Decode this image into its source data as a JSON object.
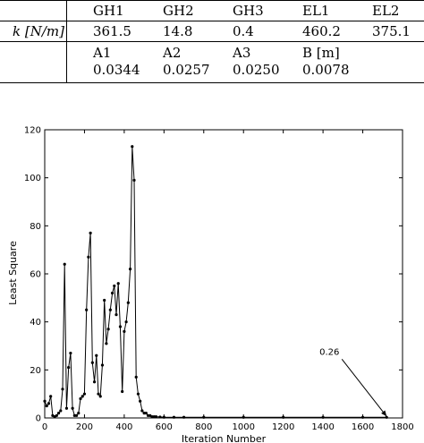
{
  "table": {
    "header": [
      "GH1",
      "GH2",
      "GH3",
      "EL1",
      "EL2"
    ],
    "row_label": "k [N/m]",
    "row_values": [
      "361.5",
      "14.8",
      "0.4",
      "460.2",
      "375.1"
    ],
    "sub_header": [
      "A1",
      "A2",
      "A3",
      "B  [m]"
    ],
    "sub_values": [
      "0.0344",
      "0.0257",
      "0.0250",
      "0.0078"
    ]
  },
  "chart_data": {
    "type": "line",
    "title": "",
    "xlabel": "Iteration Number",
    "ylabel": "Least Square",
    "xlim": [
      0,
      1800
    ],
    "ylim": [
      0,
      120
    ],
    "xticks": [
      0,
      200,
      400,
      600,
      800,
      1000,
      1200,
      1400,
      1600,
      1800
    ],
    "yticks": [
      0,
      20,
      40,
      60,
      80,
      100,
      120
    ],
    "grid": false,
    "series": [
      {
        "x": [
          0,
          10,
          20,
          30,
          40,
          50,
          60,
          70,
          80,
          90,
          100,
          110,
          120,
          130,
          140,
          150,
          160,
          170,
          180,
          190,
          200,
          210,
          220,
          230,
          240,
          250,
          260,
          270,
          280,
          290,
          300,
          310,
          320,
          330,
          340,
          350,
          360,
          370,
          380,
          390,
          400,
          410,
          420,
          430,
          440,
          450,
          460,
          470,
          480,
          490,
          500,
          510,
          520,
          530,
          540,
          550,
          560,
          580,
          600,
          650,
          700,
          800,
          1000,
          1200,
          1400,
          1600,
          1720
        ],
        "values": [
          7,
          5,
          6,
          9,
          1,
          0.5,
          1,
          2,
          3,
          12,
          64,
          4,
          21,
          27,
          4,
          1,
          1,
          2,
          8,
          9,
          10,
          45,
          67,
          77,
          23,
          15,
          26,
          10,
          9,
          22,
          49,
          31,
          37,
          45,
          52,
          55,
          43,
          56,
          38,
          11,
          36,
          40,
          48,
          62,
          113,
          99,
          17,
          10,
          7,
          3,
          2,
          2,
          1,
          1,
          0.5,
          0.5,
          0.5,
          0.4,
          0.3,
          0.3,
          0.3,
          0.28,
          0.27,
          0.27,
          0.26,
          0.26,
          0.26
        ]
      }
    ],
    "annotations": [
      {
        "text": "0.26",
        "x": 1720,
        "y": 0.26
      }
    ]
  }
}
